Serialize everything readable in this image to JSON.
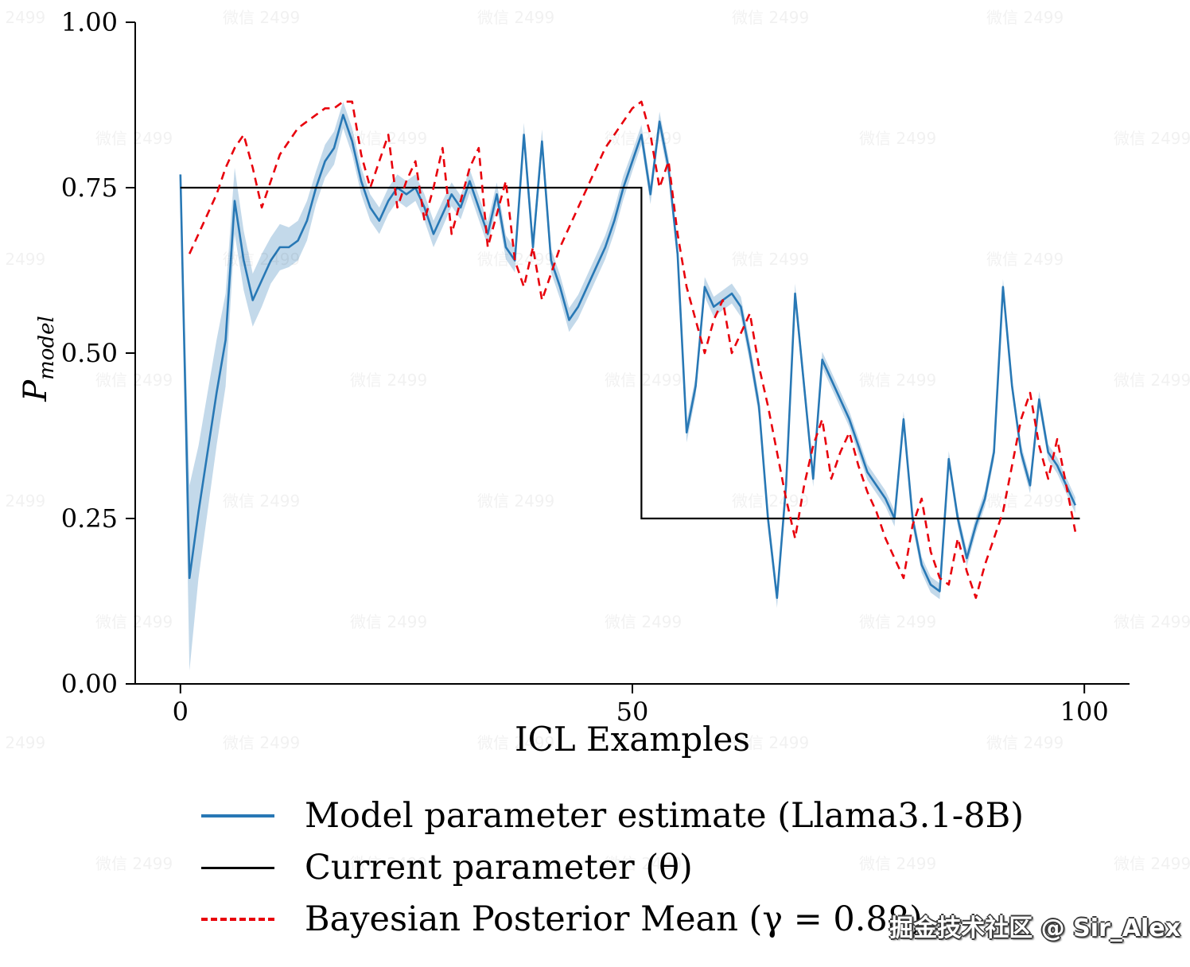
{
  "chart_data": {
    "type": "line",
    "title": "",
    "xlabel": "ICL Examples",
    "ylabel": {
      "main": "P",
      "sub": "model"
    },
    "xlim": [
      -5,
      105
    ],
    "ylim": [
      0,
      1
    ],
    "grid": false,
    "legend_position": "below",
    "x_ticks": [
      {
        "v": 0,
        "label": "0"
      },
      {
        "v": 50,
        "label": "50"
      },
      {
        "v": 100,
        "label": "100"
      }
    ],
    "y_ticks": [
      {
        "v": 0.0,
        "label": "0.00"
      },
      {
        "v": 0.25,
        "label": "0.25"
      },
      {
        "v": 0.5,
        "label": "0.50"
      },
      {
        "v": 0.75,
        "label": "0.75"
      },
      {
        "v": 1.0,
        "label": "1.00"
      }
    ],
    "series": [
      {
        "name": "Model parameter estimate (Llama3.1-8B)",
        "type": "line_with_band",
        "color": "#2878b5",
        "band_color": "rgba(40,120,181,0.28)",
        "x_start": 0,
        "values": [
          0.77,
          0.16,
          0.26,
          0.35,
          0.44,
          0.52,
          0.73,
          0.64,
          0.58,
          0.61,
          0.64,
          0.66,
          0.66,
          0.67,
          0.7,
          0.75,
          0.79,
          0.81,
          0.86,
          0.82,
          0.76,
          0.72,
          0.7,
          0.73,
          0.75,
          0.74,
          0.75,
          0.72,
          0.68,
          0.71,
          0.74,
          0.72,
          0.76,
          0.72,
          0.68,
          0.74,
          0.66,
          0.64,
          0.83,
          0.66,
          0.82,
          0.64,
          0.6,
          0.55,
          0.57,
          0.6,
          0.63,
          0.66,
          0.7,
          0.75,
          0.79,
          0.83,
          0.74,
          0.85,
          0.78,
          0.65,
          0.38,
          0.45,
          0.6,
          0.57,
          0.58,
          0.59,
          0.57,
          0.5,
          0.42,
          0.25,
          0.13,
          0.3,
          0.59,
          0.45,
          0.31,
          0.49,
          0.46,
          0.43,
          0.4,
          0.36,
          0.32,
          0.3,
          0.28,
          0.25,
          0.4,
          0.25,
          0.18,
          0.15,
          0.14,
          0.34,
          0.25,
          0.19,
          0.24,
          0.28,
          0.35,
          0.6,
          0.45,
          0.35,
          0.3,
          0.43,
          0.35,
          0.33,
          0.3,
          0.27
        ],
        "band": [
          0.005,
          0.14,
          0.1,
          0.09,
          0.08,
          0.07,
          0.05,
          0.045,
          0.04,
          0.04,
          0.035,
          0.035,
          0.03,
          0.03,
          0.03,
          0.025,
          0.025,
          0.025,
          0.02,
          0.02,
          0.02,
          0.02,
          0.02,
          0.02,
          0.02,
          0.02,
          0.02,
          0.02,
          0.02,
          0.02,
          0.018,
          0.018,
          0.018,
          0.018,
          0.018,
          0.018,
          0.018,
          0.018,
          0.018,
          0.018,
          0.018,
          0.018,
          0.018,
          0.018,
          0.018,
          0.018,
          0.018,
          0.018,
          0.018,
          0.018,
          0.015,
          0.015,
          0.015,
          0.015,
          0.015,
          0.015,
          0.015,
          0.015,
          0.015,
          0.015,
          0.015,
          0.015,
          0.015,
          0.015,
          0.015,
          0.015,
          0.015,
          0.015,
          0.015,
          0.015,
          0.012,
          0.012,
          0.012,
          0.012,
          0.012,
          0.012,
          0.012,
          0.012,
          0.012,
          0.012,
          0.012,
          0.012,
          0.012,
          0.012,
          0.012,
          0.012,
          0.012,
          0.012,
          0.012,
          0.012,
          0.012,
          0.012,
          0.012,
          0.012,
          0.012,
          0.012,
          0.012,
          0.012,
          0.012,
          0.012
        ]
      },
      {
        "name": "Current parameter (θ)",
        "type": "step",
        "color": "#000000",
        "segments": [
          [
            0,
            51,
            0.75
          ],
          [
            51,
            99.5,
            0.25
          ]
        ]
      },
      {
        "name": "Bayesian Posterior Mean (γ = 0.88)",
        "type": "dashed_line",
        "color": "#e8000b",
        "x_start": 1,
        "values": [
          0.65,
          0.68,
          0.71,
          0.74,
          0.78,
          0.81,
          0.83,
          0.78,
          0.72,
          0.76,
          0.8,
          0.82,
          0.84,
          0.85,
          0.86,
          0.87,
          0.87,
          0.88,
          0.88,
          0.8,
          0.75,
          0.79,
          0.83,
          0.72,
          0.76,
          0.79,
          0.7,
          0.75,
          0.81,
          0.68,
          0.73,
          0.78,
          0.81,
          0.66,
          0.71,
          0.76,
          0.64,
          0.6,
          0.66,
          0.58,
          0.62,
          0.66,
          0.69,
          0.72,
          0.75,
          0.78,
          0.81,
          0.83,
          0.85,
          0.87,
          0.88,
          0.83,
          0.75,
          0.79,
          0.68,
          0.6,
          0.55,
          0.5,
          0.55,
          0.58,
          0.5,
          0.53,
          0.56,
          0.48,
          0.42,
          0.35,
          0.28,
          0.22,
          0.3,
          0.36,
          0.4,
          0.31,
          0.35,
          0.38,
          0.33,
          0.29,
          0.26,
          0.22,
          0.19,
          0.16,
          0.24,
          0.28,
          0.2,
          0.16,
          0.15,
          0.22,
          0.17,
          0.13,
          0.18,
          0.22,
          0.26,
          0.33,
          0.4,
          0.44,
          0.36,
          0.31,
          0.37,
          0.3,
          0.23
        ]
      }
    ]
  },
  "watermarks": {
    "main": "掘金技术社区 @ Sir_Alex",
    "tile": "微信 2499"
  }
}
